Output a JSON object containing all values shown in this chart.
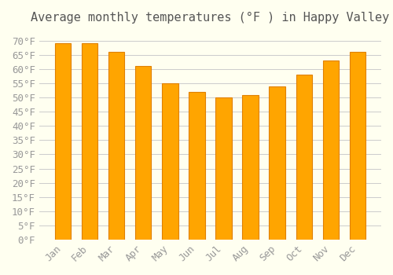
{
  "title": "Average monthly temperatures (°F ) in Happy Valley",
  "months": [
    "Jan",
    "Feb",
    "Mar",
    "Apr",
    "May",
    "Jun",
    "Jul",
    "Aug",
    "Sep",
    "Oct",
    "Nov",
    "Dec"
  ],
  "values": [
    69,
    69,
    66,
    61,
    55,
    52,
    50,
    51,
    54,
    58,
    63,
    66
  ],
  "bar_color": "#FFA500",
  "bar_edge_color": "#E08000",
  "background_color": "#FFFFF0",
  "grid_color": "#CCCCCC",
  "ylim": [
    0,
    73
  ],
  "ytick_step": 5,
  "title_fontsize": 11,
  "tick_fontsize": 9,
  "font_family": "monospace"
}
